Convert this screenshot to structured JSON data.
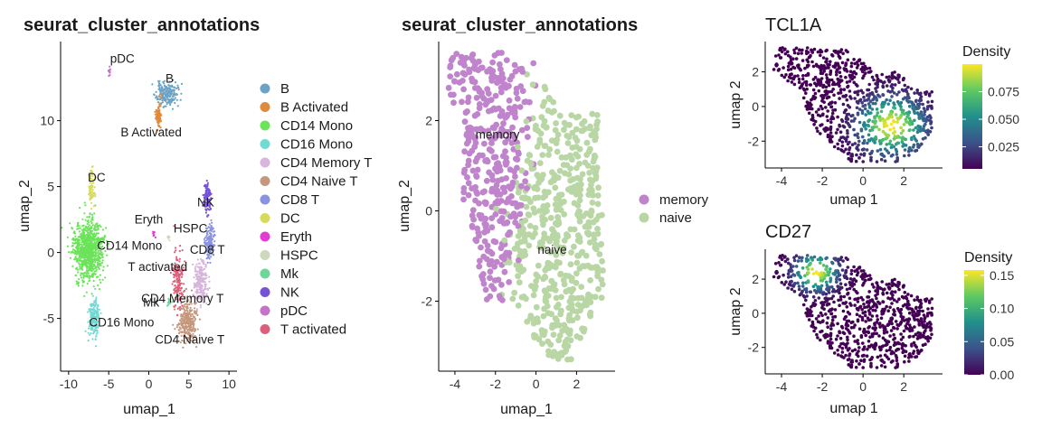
{
  "chart_data": [
    {
      "id": "p1",
      "type": "scatter",
      "title": "seurat_cluster_annotations",
      "xlabel": "umap_1",
      "ylabel": "umap_2",
      "xlim": [
        -11,
        11
      ],
      "ylim": [
        -9,
        16
      ],
      "xticks": [
        -10,
        -5,
        0,
        5,
        10
      ],
      "yticks": [
        -5,
        0,
        5,
        10
      ],
      "xtick_labels": [
        "-10",
        "-5",
        "0",
        "5",
        "10"
      ],
      "ytick_labels": [
        "-5",
        "0",
        "5",
        "10"
      ],
      "legend_position": "right",
      "series": [
        {
          "name": "B",
          "color": "#6BA3C7",
          "center": [
            2.2,
            12.0
          ],
          "spread": [
            1.2,
            0.8
          ],
          "n": 200
        },
        {
          "name": "B Activated",
          "color": "#E08A3C",
          "center": [
            1.2,
            10.3
          ],
          "spread": [
            0.3,
            0.9
          ],
          "n": 90
        },
        {
          "name": "CD14 Mono",
          "color": "#6BE35A",
          "center": [
            -7.6,
            0.3
          ],
          "spread": [
            1.7,
            2.0
          ],
          "n": 900
        },
        {
          "name": "CD16 Mono",
          "color": "#73D9D3",
          "center": [
            -6.8,
            -5.0
          ],
          "spread": [
            0.6,
            1.4
          ],
          "n": 200
        },
        {
          "name": "CD4 Memory T",
          "color": "#D7B5DC",
          "center": [
            6.5,
            -2.2
          ],
          "spread": [
            0.8,
            1.4
          ],
          "n": 220
        },
        {
          "name": "CD4 Naive T",
          "color": "#C5977D",
          "center": [
            4.8,
            -5.2
          ],
          "spread": [
            1.0,
            1.5
          ],
          "n": 300
        },
        {
          "name": "CD8 T",
          "color": "#8A93E0",
          "center": [
            7.6,
            0.8
          ],
          "spread": [
            0.6,
            1.3
          ],
          "n": 160
        },
        {
          "name": "DC",
          "color": "#D7DB5C",
          "center": [
            -7.1,
            5.0
          ],
          "spread": [
            0.4,
            1.3
          ],
          "n": 70
        },
        {
          "name": "Eryth",
          "color": "#E23CD2",
          "center": [
            0.6,
            1.4
          ],
          "spread": [
            0.15,
            0.2
          ],
          "n": 8
        },
        {
          "name": "HSPC",
          "color": "#CDD8BC",
          "center": [
            2.5,
            1.1
          ],
          "spread": [
            0.15,
            0.2
          ],
          "n": 8
        },
        {
          "name": "Mk",
          "color": "#6FD59A",
          "center": [
            2.6,
            -3.7
          ],
          "spread": [
            0.25,
            0.3
          ],
          "n": 15
        },
        {
          "name": "NK",
          "color": "#7552D6",
          "center": [
            7.3,
            4.2
          ],
          "spread": [
            0.4,
            1.1
          ],
          "n": 110
        },
        {
          "name": "pDC",
          "color": "#C572C9",
          "center": [
            -4.9,
            13.8
          ],
          "spread": [
            0.12,
            0.3
          ],
          "n": 12
        },
        {
          "name": "T activated",
          "color": "#DB5F78",
          "center": [
            3.6,
            -2.2
          ],
          "spread": [
            0.6,
            2.0
          ],
          "n": 140
        }
      ],
      "labels": [
        {
          "text": "pDC",
          "x": -3.3,
          "y": 14.4
        },
        {
          "text": "B",
          "x": 2.6,
          "y": 12.9
        },
        {
          "text": "B Activated",
          "x": 0.3,
          "y": 8.8
        },
        {
          "text": "DC",
          "x": -6.5,
          "y": 5.4
        },
        {
          "text": "NK",
          "x": 7.1,
          "y": 3.5
        },
        {
          "text": "Eryth",
          "x": 0.0,
          "y": 2.2
        },
        {
          "text": "HSPC",
          "x": 5.2,
          "y": 1.5
        },
        {
          "text": "CD14 Mono",
          "x": -2.4,
          "y": 0.2
        },
        {
          "text": "CD8 T",
          "x": 7.3,
          "y": -0.1
        },
        {
          "text": "T activated",
          "x": 1.1,
          "y": -1.4
        },
        {
          "text": "CD4 Memory T",
          "x": 4.2,
          "y": -3.8
        },
        {
          "text": "Mk",
          "x": 0.3,
          "y": -4.1
        },
        {
          "text": "CD16 Mono",
          "x": -3.4,
          "y": -5.6
        },
        {
          "text": "CD4 Naive T",
          "x": 5.1,
          "y": -6.9
        }
      ]
    },
    {
      "id": "p2",
      "type": "scatter",
      "title": "seurat_cluster_annotations",
      "xlabel": "umap_1",
      "ylabel": "umap_2",
      "xlim": [
        -4.8,
        3.9
      ],
      "ylim": [
        -3.55,
        3.75
      ],
      "xticks": [
        -4,
        -2,
        0,
        2
      ],
      "yticks": [
        -2,
        0,
        2
      ],
      "xtick_labels": [
        "-4",
        "-2",
        "0",
        "2"
      ],
      "ytick_labels": [
        "-2",
        "0",
        "2"
      ],
      "legend_position": "right",
      "series": [
        {
          "name": "memory",
          "color": "#C084CC",
          "n": 360
        },
        {
          "name": "naive",
          "color": "#B9D6A5",
          "n": 520
        }
      ],
      "labels": [
        {
          "text": "memory",
          "x": -1.9,
          "y": 1.6
        },
        {
          "text": "naive",
          "x": 0.8,
          "y": -0.95
        }
      ]
    },
    {
      "id": "p3",
      "type": "scatter",
      "title": "TCL1A",
      "xlabel": "umap 1",
      "ylabel": "umap 2",
      "xlim": [
        -4.8,
        3.9
      ],
      "ylim": [
        -3.55,
        3.75
      ],
      "xticks": [
        -4,
        -2,
        0,
        2
      ],
      "yticks": [
        -2,
        0,
        2
      ],
      "xtick_labels": [
        "-4",
        "-2",
        "0",
        "2"
      ],
      "ytick_labels": [
        "-2",
        "0",
        "2"
      ],
      "legend_title": "Density",
      "legend_position": "right",
      "color_range": [
        0.005,
        0.1
      ],
      "colorbar_ticks": [
        0.025,
        0.05,
        0.075
      ],
      "colorbar_labels": [
        "0.025",
        "0.050",
        "0.075"
      ],
      "density_peak": [
        1.4,
        -1.1
      ]
    },
    {
      "id": "p4",
      "type": "scatter",
      "title": "CD27",
      "xlabel": "umap 1",
      "ylabel": "umap 2",
      "xlim": [
        -4.8,
        3.9
      ],
      "ylim": [
        -3.55,
        3.75
      ],
      "xticks": [
        -4,
        -2,
        0,
        2
      ],
      "yticks": [
        -2,
        0,
        2
      ],
      "xtick_labels": [
        "-4",
        "-2",
        "0",
        "2"
      ],
      "ytick_labels": [
        "-2",
        "0",
        "2"
      ],
      "legend_title": "Density",
      "legend_position": "right",
      "color_range": [
        0.0,
        0.158
      ],
      "colorbar_ticks": [
        0.0,
        0.05,
        0.1,
        0.15
      ],
      "colorbar_labels": [
        "0.00",
        "0.05",
        "0.10",
        "0.15"
      ],
      "density_peak": [
        -2.3,
        2.4
      ]
    }
  ]
}
